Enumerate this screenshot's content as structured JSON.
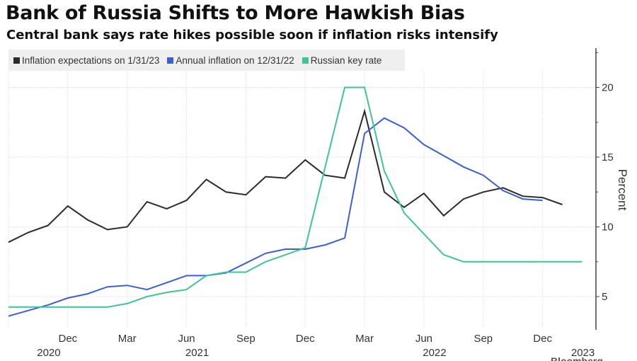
{
  "chart_data": {
    "type": "line",
    "title": "Bank of Russia Shifts to More Hawkish Bias",
    "subtitle": "Central bank says rate hikes possible soon if inflation risks intensify",
    "xlabel": "",
    "ylabel": "Percent",
    "ylim": [
      3,
      23
    ],
    "yticks": [
      5,
      10,
      15,
      20
    ],
    "grid": true,
    "legend_position": "top-left",
    "x_month_start": "2020-09",
    "x_tick_labels": [
      {
        "label": "Dec",
        "month_index": 3
      },
      {
        "label": "Mar",
        "month_index": 6
      },
      {
        "label": "Jun",
        "month_index": 9
      },
      {
        "label": "Sep",
        "month_index": 12
      },
      {
        "label": "Dec",
        "month_index": 15
      },
      {
        "label": "Mar",
        "month_index": 18
      },
      {
        "label": "Jun",
        "month_index": 21
      },
      {
        "label": "Sep",
        "month_index": 24
      },
      {
        "label": "Dec",
        "month_index": 27
      }
    ],
    "x_year_labels": [
      {
        "label": "2020",
        "month_index": 1.5
      },
      {
        "label": "2021",
        "month_index": 9
      },
      {
        "label": "2022",
        "month_index": 21
      },
      {
        "label": "2023",
        "month_index": 28.5
      }
    ],
    "series": [
      {
        "name": "Inflation expectations on 1/31/23",
        "color": "#2b2b2b",
        "values": [
          8.9,
          9.6,
          10.1,
          11.5,
          10.5,
          9.8,
          10.0,
          11.8,
          11.3,
          11.9,
          13.4,
          12.5,
          12.3,
          13.6,
          13.5,
          14.8,
          13.7,
          13.5,
          18.3,
          12.5,
          11.4,
          12.4,
          10.8,
          12.0,
          12.5,
          12.8,
          12.2,
          12.1,
          11.6
        ]
      },
      {
        "name": "Annual inflation on 12/31/22",
        "color": "#3b5fd6",
        "values": [
          3.6,
          4.0,
          4.4,
          4.9,
          5.2,
          5.7,
          5.8,
          5.5,
          6.0,
          6.5,
          6.5,
          6.7,
          7.4,
          8.1,
          8.4,
          8.4,
          8.7,
          9.2,
          16.7,
          17.8,
          17.1,
          15.9,
          15.1,
          14.3,
          13.7,
          12.6,
          12.0,
          11.9
        ]
      },
      {
        "name": "Russian key rate",
        "color": "#3cc49a",
        "values": [
          4.25,
          4.25,
          4.25,
          4.25,
          4.25,
          4.25,
          4.5,
          5.0,
          5.3,
          5.5,
          6.5,
          6.75,
          6.75,
          7.5,
          8.0,
          8.5,
          14.25,
          20.0,
          20.0,
          14.0,
          11.0,
          9.5,
          8.0,
          7.5,
          7.5,
          7.5,
          7.5,
          7.5,
          7.5,
          7.5
        ]
      }
    ]
  },
  "source_logo": "Bloomberg"
}
